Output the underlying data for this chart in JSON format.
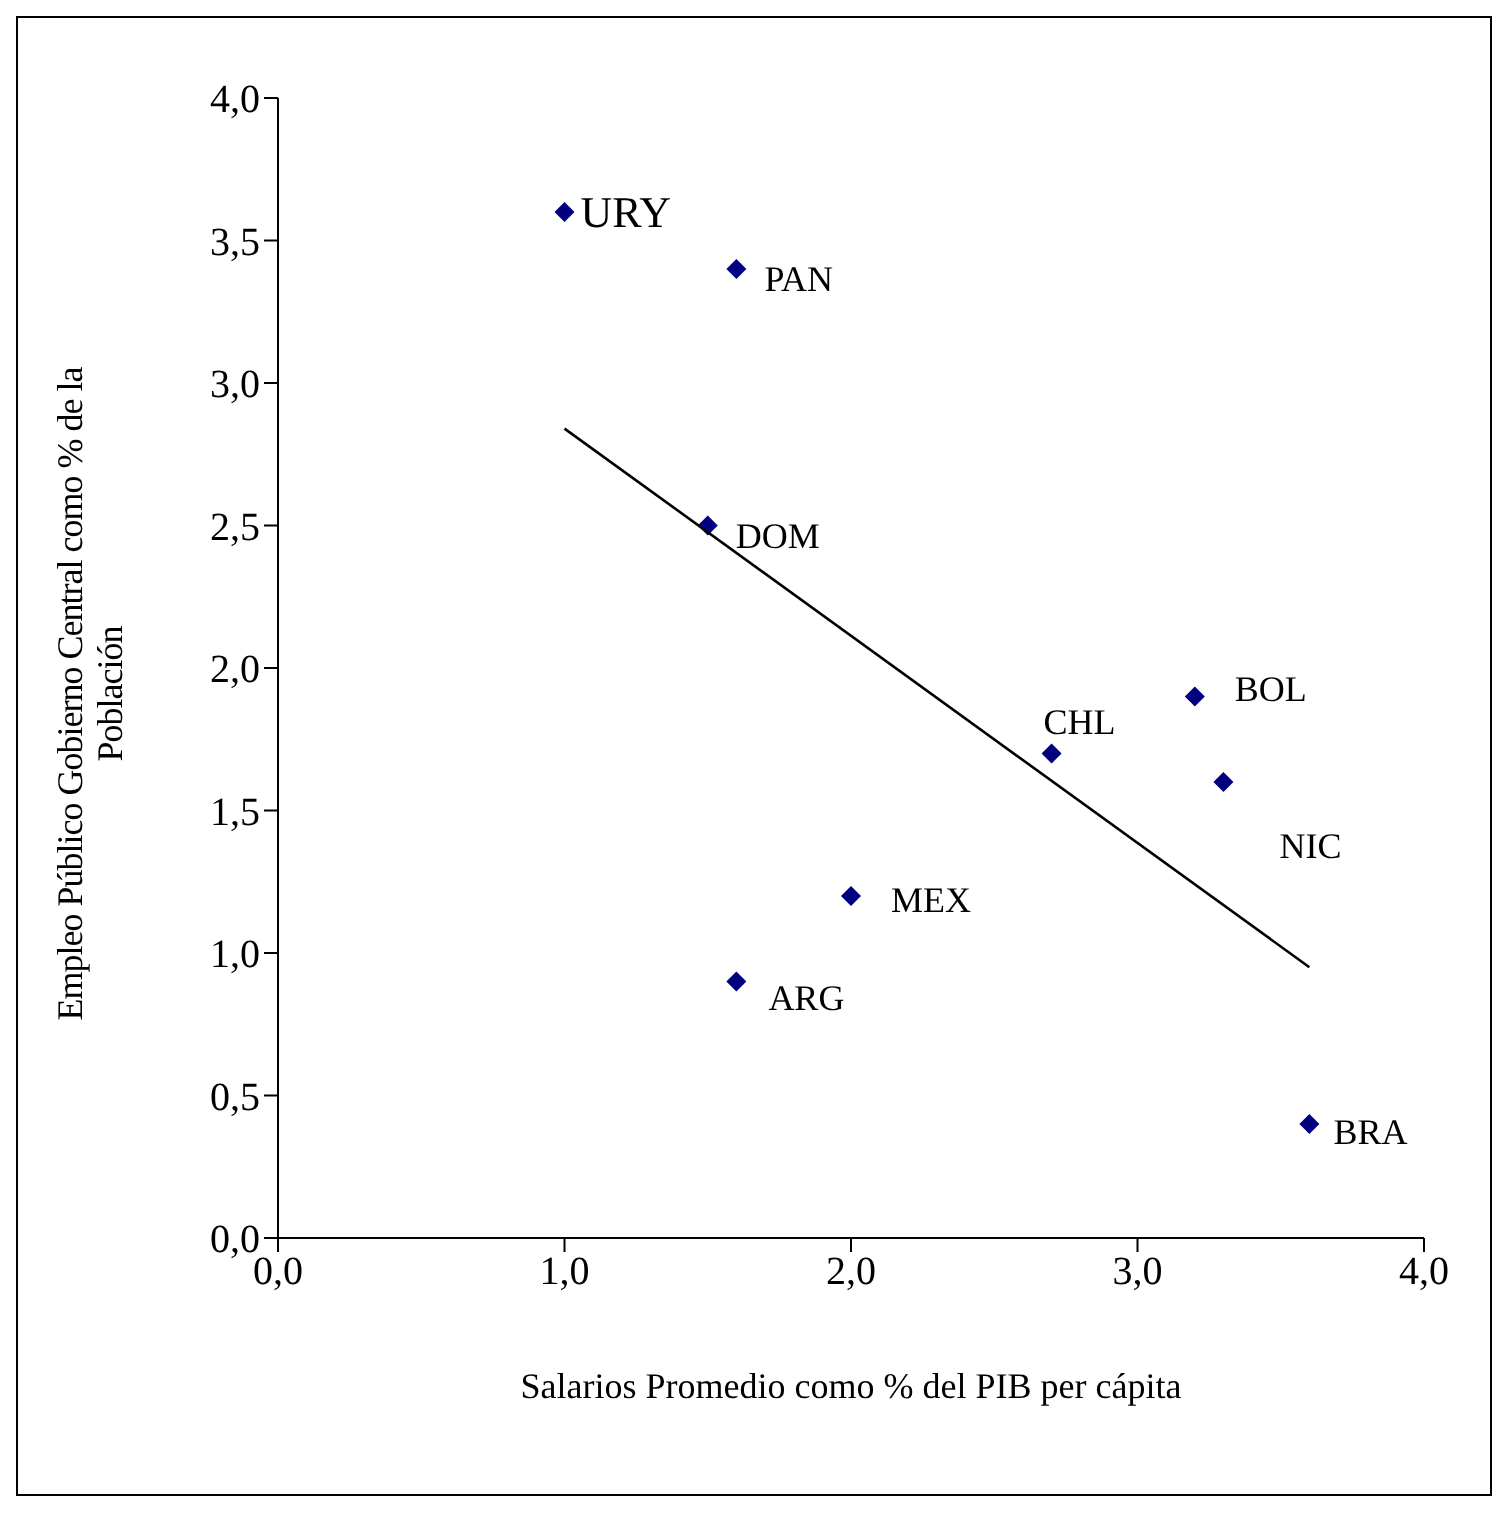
{
  "chart_data": {
    "type": "scatter",
    "xlabel": "Salarios Promedio como % del PIB per cápita",
    "ylabel": "Empleo Público Gobierno Central como % de la Población",
    "x": [
      1.0,
      1.6,
      1.5,
      2.7,
      3.2,
      3.3,
      2.0,
      1.6,
      3.6
    ],
    "series": [
      {
        "color": "#000080",
        "marker": "diamond",
        "values": [
          3.6,
          3.4,
          2.5,
          1.7,
          1.9,
          1.6,
          1.2,
          0.9,
          0.4
        ]
      },
      {
        "type": "line",
        "color": "#000000",
        "marker": "none",
        "x": [
          1.0,
          3.6
        ],
        "values": [
          2.84,
          0.95
        ]
      }
    ],
    "annotations": [
      {
        "text": "URY",
        "x": 1.0,
        "y": 3.6
      },
      {
        "text": "PAN",
        "x": 1.6,
        "y": 3.4
      },
      {
        "text": "DOM",
        "x": 1.5,
        "y": 2.5
      },
      {
        "text": "CHL",
        "x": 2.7,
        "y": 1.7
      },
      {
        "text": "BOL",
        "x": 3.2,
        "y": 1.9
      },
      {
        "text": "NIC",
        "x": 3.3,
        "y": 1.6
      },
      {
        "text": "MEX",
        "x": 2.0,
        "y": 1.2
      },
      {
        "text": "ARG",
        "x": 1.6,
        "y": 0.9
      },
      {
        "text": "BRA",
        "x": 3.6,
        "y": 0.4
      }
    ],
    "xlim": [
      0,
      4
    ],
    "ylim": [
      0,
      4
    ],
    "xticks": [
      {
        "value": 0,
        "label": "0,0"
      },
      {
        "value": 1,
        "label": "1,0"
      },
      {
        "value": 2,
        "label": "2,0"
      },
      {
        "value": 3,
        "label": "3,0"
      },
      {
        "value": 4,
        "label": "4,0"
      }
    ],
    "yticks": [
      {
        "value": 0,
        "label": "0,0"
      },
      {
        "value": 0.5,
        "label": "0,5"
      },
      {
        "value": 1,
        "label": "1,0"
      },
      {
        "value": 1.5,
        "label": "1,5"
      },
      {
        "value": 2,
        "label": "2,0"
      },
      {
        "value": 2.5,
        "label": "2,5"
      },
      {
        "value": 3,
        "label": "3,0"
      },
      {
        "value": 3.5,
        "label": "3,5"
      },
      {
        "value": 4,
        "label": "4,0"
      }
    ],
    "grid": false,
    "line_style": "solid"
  }
}
